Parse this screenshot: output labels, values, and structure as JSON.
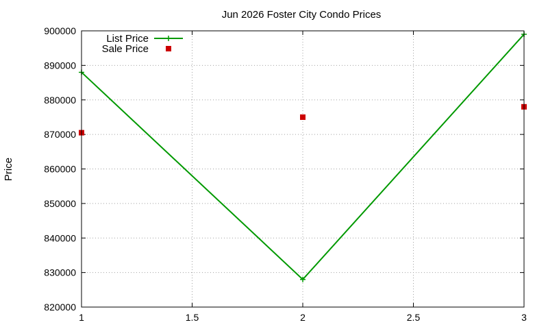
{
  "chart_data": {
    "type": "line",
    "title": "Jun 2026 Foster City Condo Prices",
    "xlabel": "",
    "ylabel": "Price",
    "xlim": [
      1,
      3
    ],
    "ylim": [
      820000,
      900000
    ],
    "x_ticks": [
      1,
      1.5,
      2,
      2.5,
      3
    ],
    "x_tick_labels": [
      "1",
      "1.5",
      "2",
      "2.5",
      "3"
    ],
    "y_ticks": [
      820000,
      830000,
      840000,
      850000,
      860000,
      870000,
      880000,
      890000,
      900000
    ],
    "y_tick_labels": [
      "820000",
      "830000",
      "840000",
      "850000",
      "860000",
      "870000",
      "880000",
      "890000",
      "900000"
    ],
    "grid": true,
    "legend_position": "top-left",
    "series": [
      {
        "name": "List Price",
        "style": "linespoints",
        "marker": "plus",
        "color": "#009900",
        "x": [
          1,
          2,
          3
        ],
        "values": [
          888000,
          828000,
          899000
        ]
      },
      {
        "name": "Sale Price",
        "style": "points",
        "marker": "square",
        "color": "#cc0000",
        "x": [
          1,
          2,
          3
        ],
        "values": [
          870500,
          875000,
          878000
        ]
      }
    ]
  }
}
